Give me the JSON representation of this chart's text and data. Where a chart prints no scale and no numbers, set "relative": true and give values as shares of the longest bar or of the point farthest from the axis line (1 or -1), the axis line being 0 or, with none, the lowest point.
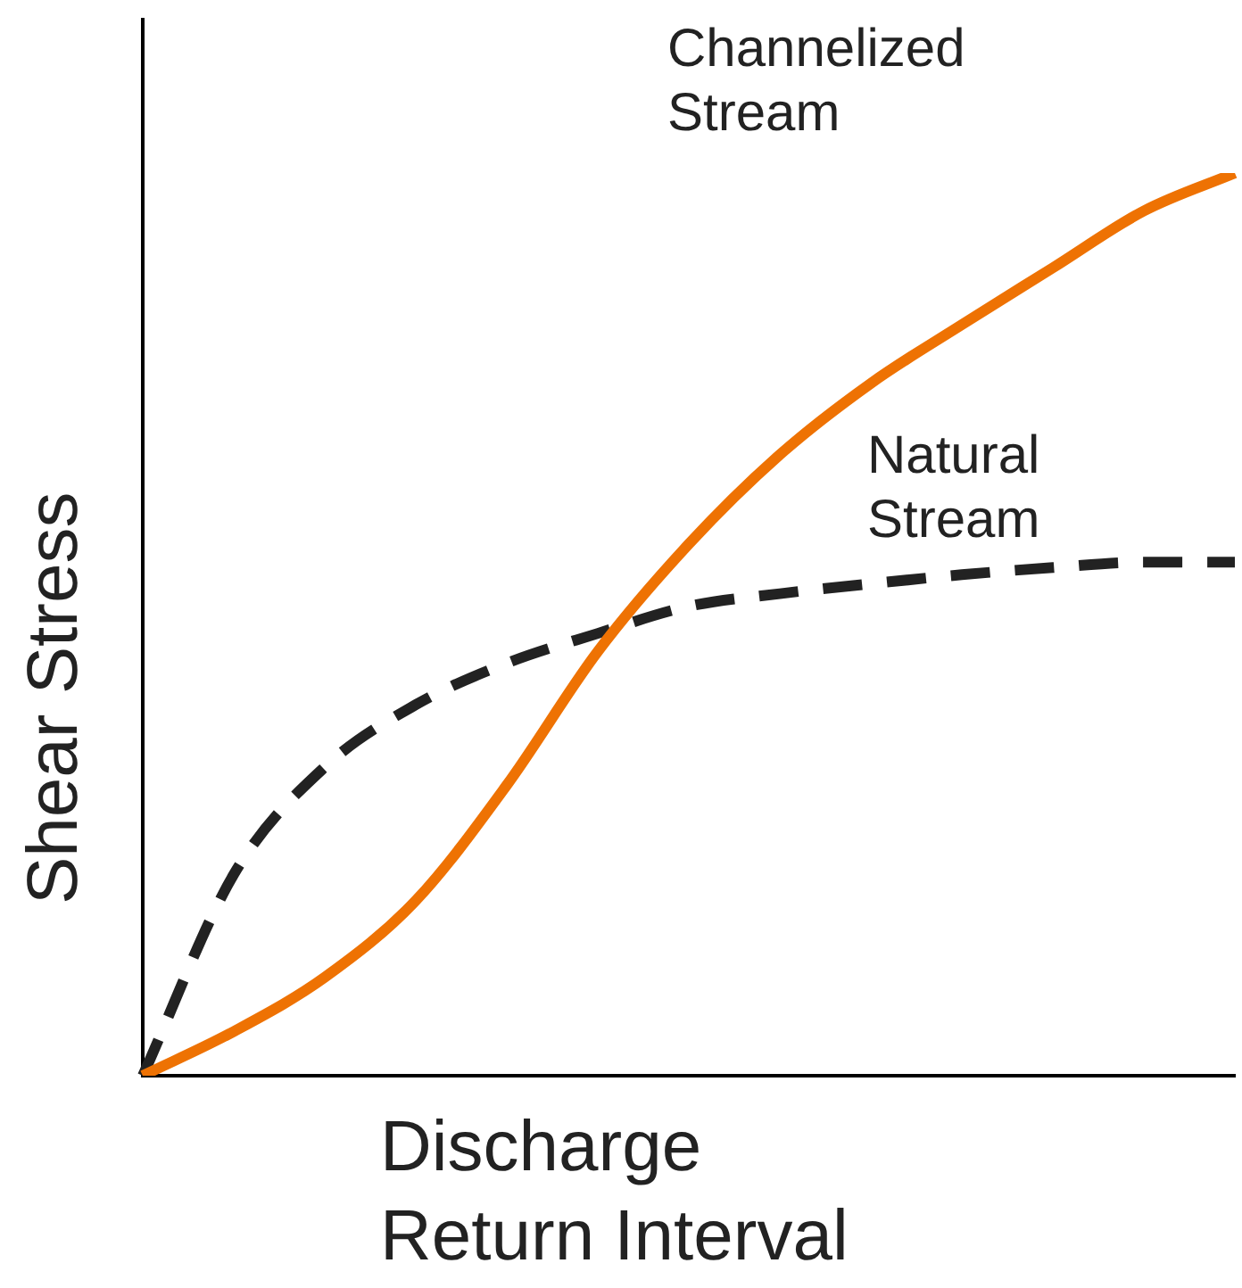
{
  "chart_data": {
    "type": "line",
    "relative": true,
    "xlabel": "Discharge Return Interval",
    "ylabel": "Shear Stress",
    "categories": [
      null,
      null,
      null,
      null,
      null,
      null,
      null,
      null,
      null,
      null,
      null,
      null,
      null
    ],
    "grid": false,
    "legend": false,
    "marker": "none",
    "series": [
      {
        "name": "Channelized Stream",
        "color": "#ee7203",
        "line_style": "solid",
        "values": [
          0,
          0.049,
          0.109,
          0.194,
          0.322,
          0.47,
          0.589,
          0.688,
          0.767,
          0.832,
          0.895,
          0.958,
          1
        ]
      },
      {
        "name": "Natural Stream",
        "color": "#222222",
        "line_style": "dashed",
        "values": [
          0,
          0.223,
          0.342,
          0.411,
          0.457,
          0.49,
          0.52,
          0.534,
          0.545,
          0.555,
          0.563,
          0.569,
          0.569
        ]
      }
    ]
  }
}
